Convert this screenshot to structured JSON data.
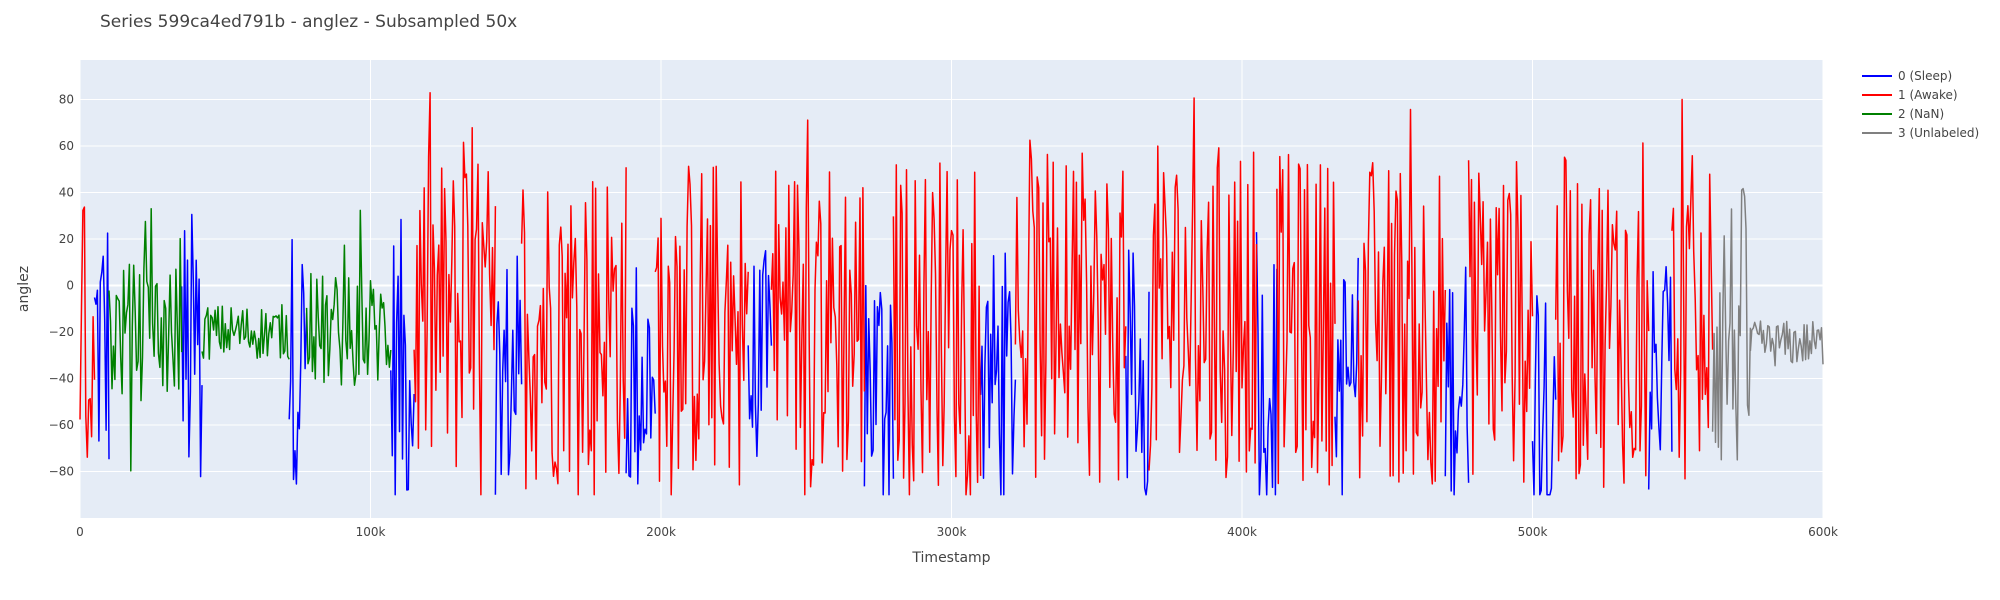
{
  "chart_data": {
    "type": "line",
    "title": "Series 599ca4ed791b - anglez - Subsampled 50x",
    "xlabel": "Timestamp",
    "ylabel": "anglez",
    "xlim": [
      0,
      600000
    ],
    "ylim": [
      -100,
      97
    ],
    "x_ticks": [
      0,
      100000,
      200000,
      300000,
      400000,
      500000,
      600000
    ],
    "x_tick_labels": [
      "0",
      "100k",
      "200k",
      "300k",
      "400k",
      "500k",
      "600k"
    ],
    "y_ticks": [
      -80,
      -60,
      -40,
      -20,
      0,
      20,
      40,
      60,
      80
    ],
    "y_tick_labels": [
      "−80",
      "−60",
      "−40",
      "−20",
      "0",
      "20",
      "40",
      "60",
      "80"
    ],
    "grid": true,
    "legend_position": "top-right",
    "plot_background": "#E5ECF6",
    "series": [
      {
        "name": "0 (Sleep)",
        "color": "#0000FF",
        "segments": [
          {
            "x_start": 5000,
            "x_end": 10000,
            "center": -25,
            "spread": 40,
            "mode": "wild"
          },
          {
            "x_start": 35000,
            "x_end": 42000,
            "center": -30,
            "spread": 40,
            "mode": "wild"
          },
          {
            "x_start": 72000,
            "x_end": 78000,
            "center": -30,
            "spread": 35,
            "mode": "wild"
          },
          {
            "x_start": 107000,
            "x_end": 115000,
            "center": -35,
            "spread": 40,
            "mode": "wild"
          },
          {
            "x_start": 143000,
            "x_end": 152000,
            "center": -40,
            "spread": 35,
            "mode": "wild"
          },
          {
            "x_start": 188000,
            "x_end": 198000,
            "center": -40,
            "spread": 35,
            "mode": "wild"
          },
          {
            "x_start": 230000,
            "x_end": 238000,
            "center": -40,
            "spread": 35,
            "mode": "wild"
          },
          {
            "x_start": 270000,
            "x_end": 280000,
            "center": -40,
            "spread": 35,
            "mode": "wild"
          },
          {
            "x_start": 310000,
            "x_end": 322000,
            "center": -40,
            "spread": 35,
            "mode": "wild"
          },
          {
            "x_start": 360000,
            "x_end": 368000,
            "center": -40,
            "spread": 35,
            "mode": "wild"
          },
          {
            "x_start": 405000,
            "x_end": 412000,
            "center": -40,
            "spread": 35,
            "mode": "wild"
          },
          {
            "x_start": 432000,
            "x_end": 440000,
            "center": -40,
            "spread": 35,
            "mode": "wild"
          },
          {
            "x_start": 470000,
            "x_end": 478000,
            "center": -40,
            "spread": 35,
            "mode": "wild"
          },
          {
            "x_start": 500000,
            "x_end": 508000,
            "center": -40,
            "spread": 35,
            "mode": "wild"
          },
          {
            "x_start": 540000,
            "x_end": 548000,
            "center": -40,
            "spread": 35,
            "mode": "wild"
          }
        ]
      },
      {
        "name": "1 (Awake)",
        "color": "#FF0000",
        "segments": [
          {
            "x_start": 0,
            "x_end": 5000,
            "center": -30,
            "spread": 40,
            "mode": "wild"
          },
          {
            "x_start": 115000,
            "x_end": 143000,
            "center": -15,
            "spread": 45,
            "mode": "wild"
          },
          {
            "x_start": 152000,
            "x_end": 188000,
            "center": -15,
            "spread": 45,
            "mode": "wild"
          },
          {
            "x_start": 198000,
            "x_end": 230000,
            "center": -15,
            "spread": 45,
            "mode": "wild"
          },
          {
            "x_start": 238000,
            "x_end": 270000,
            "center": -15,
            "spread": 45,
            "mode": "wild"
          },
          {
            "x_start": 280000,
            "x_end": 310000,
            "center": -15,
            "spread": 45,
            "mode": "wild"
          },
          {
            "x_start": 322000,
            "x_end": 360000,
            "center": -15,
            "spread": 45,
            "mode": "wild"
          },
          {
            "x_start": 368000,
            "x_end": 405000,
            "center": -10,
            "spread": 45,
            "mode": "wild"
          },
          {
            "x_start": 412000,
            "x_end": 432000,
            "center": -15,
            "spread": 45,
            "mode": "wild"
          },
          {
            "x_start": 440000,
            "x_end": 470000,
            "center": -15,
            "spread": 45,
            "mode": "wild"
          },
          {
            "x_start": 478000,
            "x_end": 500000,
            "center": -15,
            "spread": 45,
            "mode": "wild"
          },
          {
            "x_start": 508000,
            "x_end": 540000,
            "center": -15,
            "spread": 45,
            "mode": "wild"
          },
          {
            "x_start": 548000,
            "x_end": 562000,
            "center": -15,
            "spread": 45,
            "mode": "wild"
          }
        ]
      },
      {
        "name": "2 (NaN)",
        "color": "#008000",
        "segments": [
          {
            "x_start": 10000,
            "x_end": 35000,
            "center": -20,
            "spread": 30,
            "mode": "mixed"
          },
          {
            "x_start": 42000,
            "x_end": 72000,
            "center": -20,
            "spread": 12,
            "mode": "calm"
          },
          {
            "x_start": 78000,
            "x_end": 107000,
            "center": -20,
            "spread": 25,
            "mode": "mixed"
          }
        ]
      },
      {
        "name": "3 (Unlabeled)",
        "color": "#808080",
        "segments": [
          {
            "x_start": 562000,
            "x_end": 575000,
            "center": -20,
            "spread": 40,
            "mode": "wild"
          },
          {
            "x_start": 575000,
            "x_end": 600000,
            "center": -25,
            "spread": 10,
            "mode": "calm"
          }
        ]
      }
    ]
  }
}
